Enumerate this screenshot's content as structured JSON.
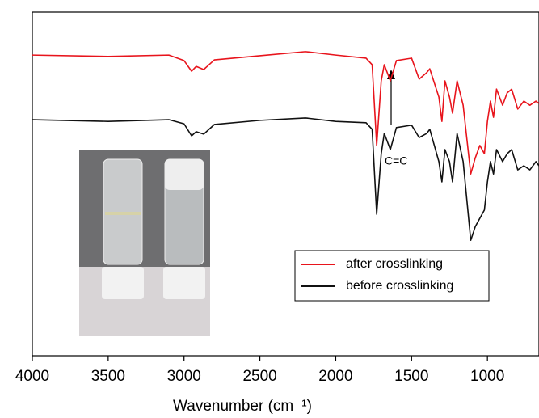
{
  "chart_data": {
    "type": "line",
    "xlabel": "Wavenumber (cm⁻¹)",
    "annotation": "C=C",
    "x": [
      4000,
      3500,
      3100,
      3000,
      2950,
      2920,
      2870,
      2800,
      2500,
      2200,
      2000,
      1800,
      1760,
      1730,
      1700,
      1680,
      1640,
      1600,
      1500,
      1450,
      1400,
      1380,
      1320,
      1300,
      1280,
      1250,
      1230,
      1200,
      1160,
      1110,
      1080,
      1050,
      1020,
      1000,
      980,
      960,
      940,
      900,
      870,
      840,
      800,
      760,
      720,
      680,
      660
    ],
    "series": [
      {
        "name": "after crosslinking",
        "color": "#e8141c",
        "values": [
          87.5,
          87.1,
          87.5,
          85.9,
          82.8,
          84.2,
          83.3,
          86.1,
          87.3,
          88.5,
          87.5,
          86.6,
          84.7,
          61.2,
          80,
          84.7,
          80,
          85.9,
          86.6,
          80.5,
          82.4,
          83.5,
          75.3,
          68.2,
          80,
          75.3,
          70.6,
          80,
          72.9,
          52.9,
          57.6,
          61.2,
          58.8,
          68.2,
          74.1,
          69.4,
          77.6,
          72.9,
          76.5,
          77.6,
          71.8,
          74.1,
          72.9,
          74.1,
          73.4
        ]
      },
      {
        "name": "before crosslinking",
        "color": "#111111",
        "values": [
          68.7,
          68.2,
          68.7,
          67.5,
          64,
          65.2,
          64.5,
          67.3,
          68.5,
          69.2,
          68.2,
          67.8,
          65.9,
          41.2,
          58.8,
          64.7,
          60,
          66.4,
          67.1,
          63.5,
          64.7,
          65.9,
          56.5,
          50.6,
          60,
          56.5,
          50.6,
          64.7,
          56.5,
          33.6,
          37.6,
          40,
          42.4,
          50.6,
          56.5,
          52.9,
          60,
          56.5,
          58.8,
          60,
          54.1,
          55.3,
          54.1,
          56.5,
          55.3
        ]
      }
    ],
    "xlim": [
      4000,
      660
    ],
    "xticks": [
      4000,
      3500,
      3000,
      2500,
      2000,
      1500,
      1000
    ],
    "ylim": [
      0,
      100
    ],
    "legend": "lower-right"
  }
}
